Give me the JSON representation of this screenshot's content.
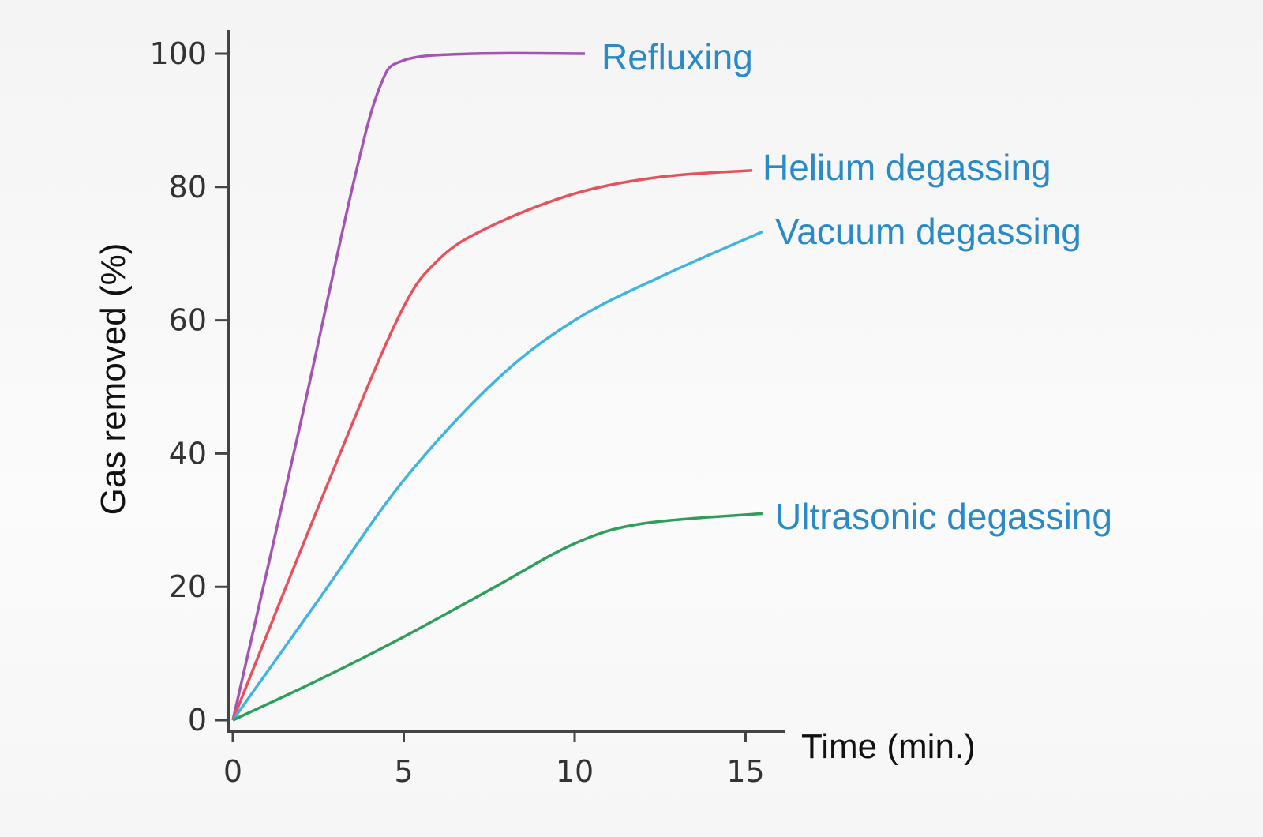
{
  "chart_data": {
    "type": "line",
    "title": "",
    "xlabel": "Time (min.)",
    "ylabel": "Gas removed (%)",
    "xlim": [
      0,
      16
    ],
    "ylim": [
      0,
      100
    ],
    "xticks": [
      0,
      5,
      10,
      15
    ],
    "yticks": [
      0,
      20,
      40,
      60,
      80,
      100
    ],
    "xtick_labels": [
      "0",
      "5",
      "10",
      "15"
    ],
    "ytick_labels": [
      "0",
      "20",
      "40",
      "60",
      "80",
      "100"
    ],
    "grid": false,
    "legend": "inline labels at line ends",
    "series": [
      {
        "name": "Refluxing",
        "color": "#a455b3",
        "x": [
          0,
          2,
          3.5,
          4.3,
          5,
          7,
          10.3
        ],
        "y": [
          0,
          45,
          80,
          95,
          99,
          100,
          100
        ]
      },
      {
        "name": "Helium degassing",
        "color": "#e8505b",
        "x": [
          0,
          2.5,
          4.8,
          6,
          7.5,
          10,
          12.5,
          15.2
        ],
        "y": [
          0,
          32,
          60,
          69,
          74,
          79,
          81.5,
          82.5
        ]
      },
      {
        "name": "Vacuum degassing",
        "color": "#3fb4e0",
        "x": [
          0,
          2.5,
          5,
          7.7,
          10,
          12.5,
          15.5
        ],
        "y": [
          0,
          18,
          36,
          51,
          60,
          66.5,
          73.3
        ]
      },
      {
        "name": "Ultrasonic degassing",
        "color": "#2e9e5b",
        "x": [
          0,
          2.5,
          5,
          7.5,
          10,
          12,
          15.5
        ],
        "y": [
          0,
          6,
          12.5,
          19.5,
          26.5,
          29.5,
          31
        ]
      }
    ]
  }
}
